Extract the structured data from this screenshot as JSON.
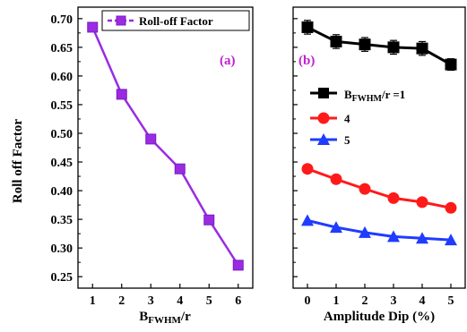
{
  "chart_data": [
    {
      "type": "line",
      "panel_label": "(a)",
      "xlabel_main": "B",
      "xlabel_sub": "FWHM",
      "xlabel_tail": "/r",
      "ylabel": "Roll off Factor",
      "xlim": [
        0.5,
        6.5
      ],
      "ylim": [
        0.23,
        0.72
      ],
      "xticks": [
        "1",
        "2",
        "3",
        "4",
        "5",
        "6"
      ],
      "yticks": [
        "0.25",
        "0.30",
        "0.35",
        "0.40",
        "0.45",
        "0.50",
        "0.55",
        "0.60",
        "0.65",
        "0.70"
      ],
      "legend_position": "top-right",
      "series": [
        {
          "name": "Roll-off Factor",
          "color": "#9a2be2",
          "marker": "square",
          "line_style": "solid",
          "x": [
            1,
            2,
            3,
            4,
            5,
            6
          ],
          "y": [
            0.685,
            0.568,
            0.49,
            0.438,
            0.349,
            0.27
          ]
        }
      ]
    },
    {
      "type": "line",
      "panel_label": "(b)",
      "xlabel": "Amplitude Dip (%)",
      "xlim": [
        -0.5,
        5.5
      ],
      "ylim": [
        0.23,
        0.72
      ],
      "xticks": [
        "0",
        "1",
        "2",
        "3",
        "4",
        "5"
      ],
      "error_bars": true,
      "legend_position": "center-left",
      "series": [
        {
          "name_main": "B",
          "name_sub": "FWHM",
          "name_tail": "/r =1",
          "color": "#000000",
          "marker": "square",
          "x": [
            0,
            1,
            2,
            3,
            4,
            5
          ],
          "y": [
            0.685,
            0.66,
            0.655,
            0.65,
            0.648,
            0.62
          ],
          "err": [
            0.012,
            0.012,
            0.012,
            0.012,
            0.012,
            0.01
          ]
        },
        {
          "name": "4",
          "color": "#ff1a1a",
          "marker": "circle",
          "x": [
            0,
            1,
            2,
            3,
            4,
            5
          ],
          "y": [
            0.438,
            0.42,
            0.403,
            0.387,
            0.38,
            0.37
          ],
          "err": [
            0,
            0,
            0,
            0,
            0,
            0
          ]
        },
        {
          "name": "5",
          "color": "#1f3cff",
          "marker": "triangle",
          "x": [
            0,
            1,
            2,
            3,
            4,
            5
          ],
          "y": [
            0.348,
            0.336,
            0.327,
            0.32,
            0.317,
            0.314
          ],
          "err": [
            0,
            0,
            0,
            0,
            0,
            0
          ]
        }
      ]
    }
  ]
}
